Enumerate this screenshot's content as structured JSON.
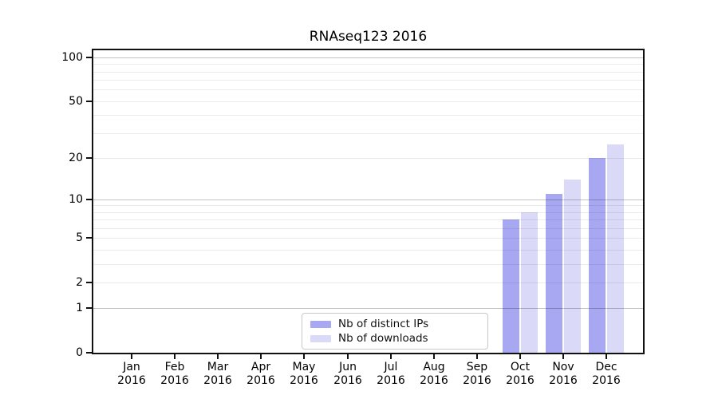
{
  "chart_data": {
    "type": "bar",
    "title": "RNAseq123 2016",
    "categories": [
      "Jan 2016",
      "Feb 2016",
      "Mar 2016",
      "Apr 2016",
      "May 2016",
      "Jun 2016",
      "Jul 2016",
      "Aug 2016",
      "Sep 2016",
      "Oct 2016",
      "Nov 2016",
      "Dec 2016"
    ],
    "month_labels": [
      "Jan",
      "Feb",
      "Mar",
      "Apr",
      "May",
      "Jun",
      "Jul",
      "Aug",
      "Sep",
      "Oct",
      "Nov",
      "Dec"
    ],
    "year_label": "2016",
    "series": [
      {
        "name": "Nb of distinct IPs",
        "color": "#a8a8f2",
        "values": [
          0,
          0,
          0,
          0,
          0,
          0,
          0,
          0,
          0,
          7,
          11,
          20
        ]
      },
      {
        "name": "Nb of downloads",
        "color": "#dadaf8",
        "values": [
          0,
          0,
          0,
          0,
          0,
          0,
          0,
          0,
          0,
          8,
          14,
          25
        ]
      }
    ],
    "y_ticks": [
      100,
      50,
      20,
      10,
      5,
      2,
      1,
      0
    ],
    "y_scale": "log1p",
    "ylim": [
      0,
      112
    ],
    "xlabel": "",
    "ylabel": "",
    "grid": "horizontal",
    "major_gridlines": [
      1,
      10,
      100
    ],
    "minor_gridlines": [
      2,
      3,
      4,
      5,
      6,
      7,
      8,
      9,
      20,
      30,
      40,
      50,
      60,
      70,
      80,
      90
    ],
    "legend_position": "lower-center"
  }
}
